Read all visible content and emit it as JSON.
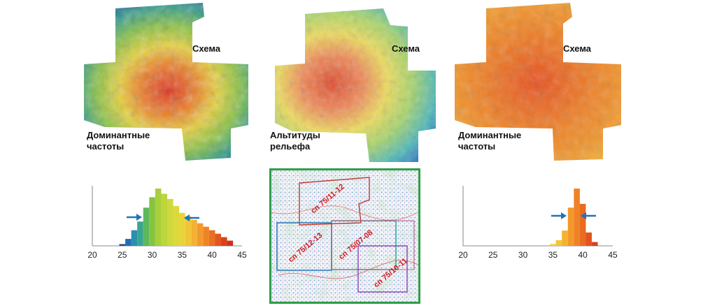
{
  "panels": [
    {
      "id": "left",
      "label_schema": "Схема",
      "label_caption_line1": "Доминантные",
      "label_caption_line2": "частоты"
    },
    {
      "id": "middle",
      "label_schema": "Схема",
      "label_caption_line1": "Альтитуды",
      "label_caption_line2": "рельефа"
    },
    {
      "id": "right",
      "label_schema": "Схема",
      "label_caption_line1": "Доминантные",
      "label_caption_line2": "частоты"
    }
  ],
  "map_regions": [
    {
      "label": "сп 75/11-12",
      "color": "#c0392b"
    },
    {
      "label": "сп 75/12-13",
      "color": "#1f6fb2"
    },
    {
      "label": "сп 75/07-08",
      "color": "#1aa37a"
    },
    {
      "label": "сп 75/10-11",
      "color": "#8e3fb0"
    }
  ],
  "colors": {
    "arrow": "#1b75bb",
    "map_border": "#2e9e4a",
    "region_text": "#d21a1a"
  },
  "chart_data": [
    {
      "type": "bar",
      "xlim": [
        20,
        45
      ],
      "xticks": [
        20,
        25,
        30,
        35,
        40,
        45
      ],
      "x": [
        25,
        26,
        27,
        28,
        29,
        30,
        31,
        32,
        33,
        34,
        35,
        36,
        37,
        38,
        39,
        40,
        41,
        42,
        43
      ],
      "values": [
        1,
        4,
        9,
        14,
        22,
        28,
        33,
        30,
        27,
        23,
        19,
        17,
        15,
        13,
        11,
        9,
        7,
        5,
        3
      ],
      "colors": [
        "#1a4d8c",
        "#1f6fb0",
        "#2d8fae",
        "#3aa58f",
        "#5db85c",
        "#86c440",
        "#a8cf3c",
        "#bcd63c",
        "#cdd93c",
        "#dcd93c",
        "#e8d33a",
        "#f0c536",
        "#f4b232",
        "#f39a2c",
        "#ef8427",
        "#ea6e23",
        "#e2561f",
        "#d8421c",
        "#cc3219"
      ]
    },
    {
      "type": "bar",
      "xlim": [
        20,
        45
      ],
      "xticks": [
        20,
        25,
        30,
        35,
        40,
        45
      ],
      "x": [
        35,
        36,
        37,
        38,
        39,
        40,
        41,
        42
      ],
      "values": [
        1,
        3,
        8,
        20,
        30,
        22,
        7,
        2
      ],
      "colors": [
        "#f2d23a",
        "#f4c534",
        "#f5b12f",
        "#f3992a",
        "#ef8226",
        "#ea6b22",
        "#e2541e",
        "#d8411b"
      ]
    }
  ]
}
